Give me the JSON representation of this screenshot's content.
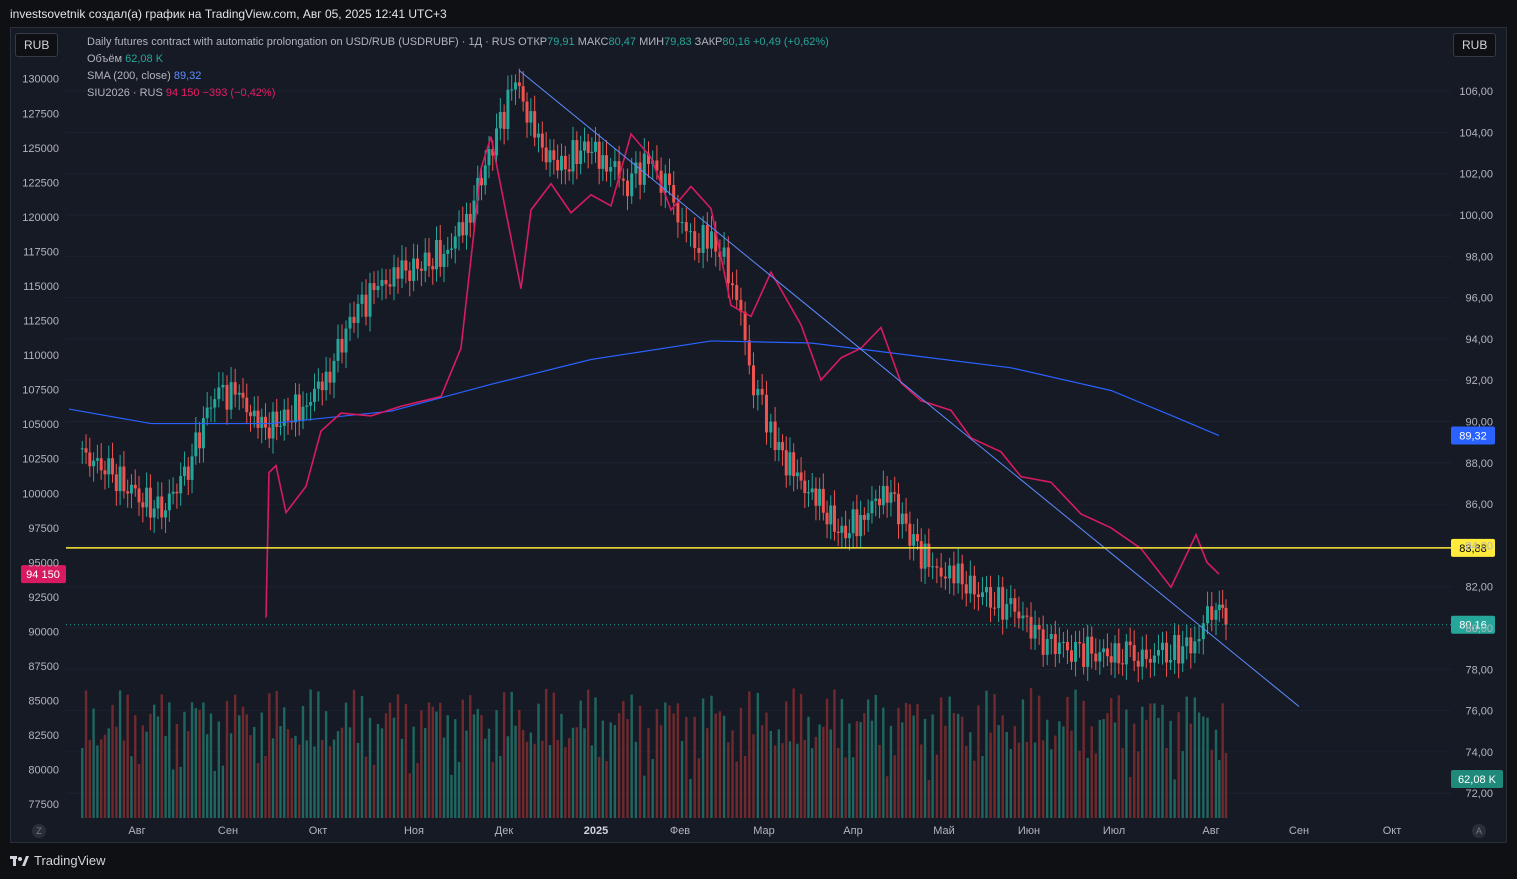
{
  "header": {
    "text": "investsovetnik создал(а) график на TradingView.com, Авг 05, 2025 12:41 UTC+3"
  },
  "buttons": {
    "left_currency": "RUB",
    "right_currency": "RUB"
  },
  "legend": {
    "main_title": "Daily futures contract with automatic prolongation on USD/RUB (USDRUBF) · 1Д · RUS",
    "open_label": "ОТКР",
    "open_value": "79,91",
    "high_label": "МАКС",
    "high_value": "80,47",
    "low_label": "МИН",
    "low_value": "79,83",
    "close_label": "ЗАКР",
    "close_value": "80,16",
    "change": "+0,49 (+0,62%)",
    "volume_label": "Объём",
    "volume_value": "62,08 K",
    "sma_label": "SMA (200, close)",
    "sma_value": "89,32",
    "compare_label": "SIU2026 · RUS",
    "compare_value": "94 150",
    "compare_change": "−393 (−0,42%)"
  },
  "footer": {
    "brand": "TradingView"
  },
  "chart_data": {
    "type": "candlestick",
    "title": "Daily futures contract with automatic prolongation on USD/RUB (USDRUBF) · 1Д · RUS",
    "x_labels": [
      "Авг",
      "Сен",
      "Окт",
      "Ноя",
      "Дек",
      "2025",
      "Фев",
      "Мар",
      "Апр",
      "Май",
      "Июн",
      "Июл",
      "Авг",
      "Сен",
      "Окт"
    ],
    "right_axis": {
      "unit": "RUB",
      "range": [
        70.8,
        107.6
      ],
      "ticks": [
        "106,00",
        "104,00",
        "102,00",
        "100,00",
        "98,00",
        "96,00",
        "94,00",
        "92,00",
        "90,00",
        "88,00",
        "86,00",
        "84,00",
        "82,00",
        "80,00",
        "78,00",
        "76,00",
        "74,00",
        "72,00"
      ]
    },
    "left_axis": {
      "unit": "RUB",
      "range": [
        76500,
        131500
      ],
      "ticks": [
        "130000",
        "127500",
        "125000",
        "122500",
        "120000",
        "117500",
        "115000",
        "112500",
        "110000",
        "107500",
        "105000",
        "102500",
        "100000",
        "97500",
        "95000",
        "92500",
        "90000",
        "87500",
        "85000",
        "82500",
        "80000",
        "77500"
      ]
    },
    "usdrubf_close_path": [
      {
        "t": "Авг",
        "v": 88.4
      },
      {
        "t": "Авг",
        "v": 87.6
      },
      {
        "t": "Авг",
        "v": 86.4
      },
      {
        "t": "Авг",
        "v": 85.6
      },
      {
        "t": "Авг",
        "v": 87.8
      },
      {
        "t": "Авг",
        "v": 91.5
      },
      {
        "t": "Сен",
        "v": 91.2
      },
      {
        "t": "Сен",
        "v": 89.6
      },
      {
        "t": "Сен",
        "v": 90.1
      },
      {
        "t": "Сен",
        "v": 90.9
      },
      {
        "t": "Окт",
        "v": 92.5
      },
      {
        "t": "Окт",
        "v": 95.3
      },
      {
        "t": "Окт",
        "v": 96.5
      },
      {
        "t": "Окт",
        "v": 97.2
      },
      {
        "t": "Ноя",
        "v": 97.6
      },
      {
        "t": "Ноя",
        "v": 98.3
      },
      {
        "t": "Ноя",
        "v": 100.2
      },
      {
        "t": "Ноя",
        "v": 103.5
      },
      {
        "t": "Дек",
        "v": 106.5
      },
      {
        "t": "Дек",
        "v": 103.4
      },
      {
        "t": "Дек",
        "v": 102.2
      },
      {
        "t": "Дек",
        "v": 103.4
      },
      {
        "t": "2025",
        "v": 102.6
      },
      {
        "t": "2025",
        "v": 101.6
      },
      {
        "t": "2025",
        "v": 102.7
      },
      {
        "t": "2025",
        "v": 101.0
      },
      {
        "t": "Фев",
        "v": 98.5
      },
      {
        "t": "Фев",
        "v": 98.9
      },
      {
        "t": "Фев",
        "v": 97.0
      },
      {
        "t": "Фев",
        "v": 92.0
      },
      {
        "t": "Мар",
        "v": 89.0
      },
      {
        "t": "Мар",
        "v": 87.2
      },
      {
        "t": "Мар",
        "v": 86.0
      },
      {
        "t": "Мар",
        "v": 84.5
      },
      {
        "t": "Апр",
        "v": 85.5
      },
      {
        "t": "Апр",
        "v": 86.8
      },
      {
        "t": "Апр",
        "v": 84.5
      },
      {
        "t": "Апр",
        "v": 82.8
      },
      {
        "t": "Май",
        "v": 82.4
      },
      {
        "t": "Май",
        "v": 81.4
      },
      {
        "t": "Май",
        "v": 80.9
      },
      {
        "t": "Июн",
        "v": 79.4
      },
      {
        "t": "Июн",
        "v": 79.0
      },
      {
        "t": "Июн",
        "v": 78.8
      },
      {
        "t": "Июл",
        "v": 78.5
      },
      {
        "t": "Июл",
        "v": 78.6
      },
      {
        "t": "Июл",
        "v": 79.3
      },
      {
        "t": "Авг",
        "v": 81.5
      },
      {
        "t": "Авг",
        "v": 80.16
      }
    ],
    "series": [
      {
        "name": "SMA (200, close)",
        "color": "#2962ff",
        "last": 89.32
      },
      {
        "name": "SIU2026 · RUS",
        "color": "#d81b60",
        "last": 94150
      }
    ],
    "horizontal_level": {
      "value": 83.88,
      "label": "83,88",
      "color": "#ffeb3b"
    },
    "last_price": {
      "value": 80.16,
      "label": "80,16"
    },
    "compare_last": {
      "value": 94150,
      "label": "94 150"
    },
    "volume_last": "62,08 K",
    "trendline": {
      "from": {
        "t": "Дек",
        "v": 107.0
      },
      "to": {
        "t": "Сен",
        "v": 76.2
      }
    }
  }
}
